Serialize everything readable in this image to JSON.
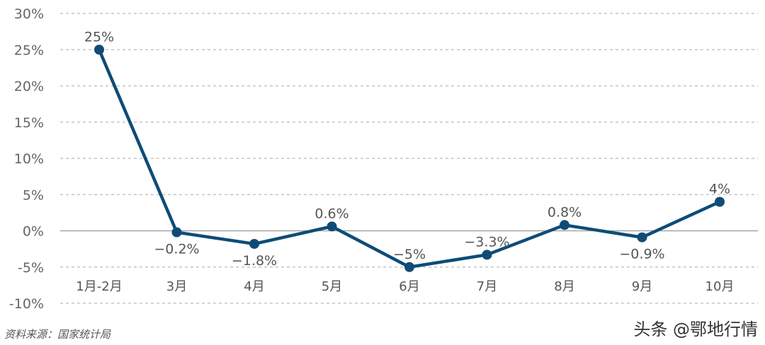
{
  "chart_data": {
    "type": "line",
    "categories": [
      "1月-2月",
      "3月",
      "4月",
      "5月",
      "6月",
      "7月",
      "8月",
      "9月",
      "10月"
    ],
    "series": [
      {
        "values": [
          25,
          -0.2,
          -1.8,
          0.6,
          -5,
          -3.3,
          0.8,
          -0.9,
          4
        ]
      }
    ],
    "data_labels": [
      "25%",
      "−0.2%",
      "−1.8%",
      "0.6%",
      "−5%",
      "−3.3%",
      "0.8%",
      "−0.9%",
      "4%"
    ],
    "y_ticks": [
      -10,
      -5,
      0,
      5,
      10,
      15,
      20,
      25,
      30
    ],
    "y_tick_labels": [
      "-10%",
      "-5%",
      "0%",
      "5%",
      "10%",
      "15%",
      "20%",
      "25%",
      "30%"
    ],
    "ylim": [
      -10,
      30
    ],
    "grid": "horizontal-dashed",
    "line_color": "#0e4c77",
    "title": "",
    "xlabel": "",
    "ylabel": ""
  },
  "source_note": "资料来源：国家统计局",
  "watermark": "头条 @鄂地行情"
}
